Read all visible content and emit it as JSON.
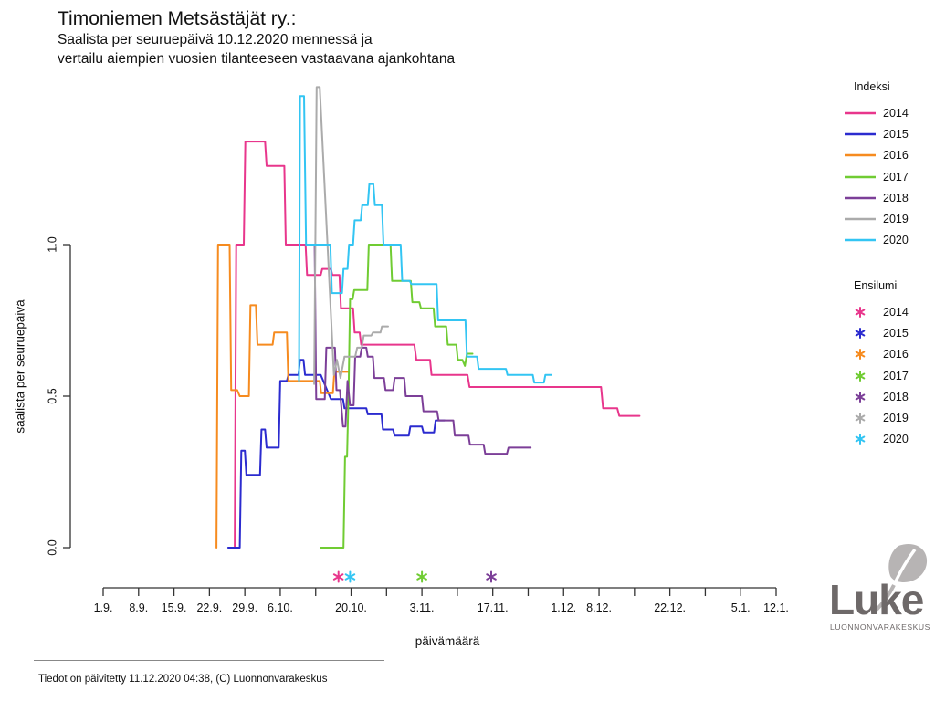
{
  "title": "Timoniemen Metsästäjät ry.:",
  "subtitle_line1": "Saalista per seuruepäivä 10.12.2020 mennessä ja",
  "subtitle_line2": "vertailu aiempien vuosien tilanteeseen vastaavana ajankohtana",
  "footer": "Tiedot on päivitetty 11.12.2020 04:38, (C) Luonnonvarakeskus",
  "logo": {
    "name": "Luke",
    "subtext": "LUONNONVARAKESKUS"
  },
  "legend": {
    "index_title": "Indeksi",
    "ensilumi_title": "Ensilumi",
    "years": [
      {
        "label": "2014",
        "color": "#E8368C"
      },
      {
        "label": "2015",
        "color": "#2B2BCF"
      },
      {
        "label": "2016",
        "color": "#F68B1F"
      },
      {
        "label": "2017",
        "color": "#70CC33"
      },
      {
        "label": "2018",
        "color": "#7C3F98"
      },
      {
        "label": "2019",
        "color": "#ABABAB"
      },
      {
        "label": "2020",
        "color": "#33C5F3"
      }
    ]
  },
  "chart_data": {
    "type": "line",
    "title": "Saalista per seuruepäivä 10.12.2020 mennessä ja vertailu aiempien vuosien tilanteeseen vastaavana ajankohtana",
    "xlabel": "päivämäärä",
    "ylabel": "saalista per seuruepäivä",
    "x_unit": "days since 1.9.",
    "xlim_days": [
      0,
      133
    ],
    "ylim": [
      0.0,
      1.0
    ],
    "grid": false,
    "legend_position": "right",
    "y_ticks": [
      {
        "v": 0.0,
        "label": "0.0"
      },
      {
        "v": 0.5,
        "label": "0.5"
      },
      {
        "v": 1.0,
        "label": "1.0"
      }
    ],
    "x_ticks": [
      {
        "day": 0,
        "label": "1.9."
      },
      {
        "day": 7,
        "label": "8.9."
      },
      {
        "day": 14,
        "label": "15.9."
      },
      {
        "day": 21,
        "label": "22.9."
      },
      {
        "day": 28,
        "label": "29.9."
      },
      {
        "day": 35,
        "label": "6.10."
      },
      {
        "day": 42,
        "label": ""
      },
      {
        "day": 49,
        "label": "20.10."
      },
      {
        "day": 56,
        "label": ""
      },
      {
        "day": 63,
        "label": "3.11."
      },
      {
        "day": 70,
        "label": ""
      },
      {
        "day": 77,
        "label": "17.11."
      },
      {
        "day": 84,
        "label": ""
      },
      {
        "day": 91,
        "label": "1.12."
      },
      {
        "day": 98,
        "label": "8.12."
      },
      {
        "day": 105,
        "label": ""
      },
      {
        "day": 112,
        "label": "22.12."
      },
      {
        "day": 119,
        "label": ""
      },
      {
        "day": 126,
        "label": "5.1."
      },
      {
        "day": 133,
        "label": "12.1."
      }
    ],
    "series": [
      {
        "name": "2014",
        "color": "#E8368C",
        "points": [
          [
            26,
            0
          ],
          [
            26.3,
            1.0
          ],
          [
            27.8,
            1.0
          ],
          [
            28.1,
            1.34
          ],
          [
            32,
            1.34
          ],
          [
            32.3,
            1.26
          ],
          [
            35.8,
            1.26
          ],
          [
            36.1,
            1.0
          ],
          [
            40,
            1.0
          ],
          [
            40.3,
            0.9
          ],
          [
            43,
            0.9
          ],
          [
            43.3,
            0.92
          ],
          [
            45,
            0.92
          ],
          [
            45.3,
            0.9
          ],
          [
            46.7,
            0.9
          ],
          [
            47,
            0.79
          ],
          [
            49.4,
            0.79
          ],
          [
            49.7,
            0.71
          ],
          [
            50.7,
            0.71
          ],
          [
            51,
            0.67
          ],
          [
            61.5,
            0.67
          ],
          [
            61.9,
            0.62
          ],
          [
            64.6,
            0.62
          ],
          [
            64.9,
            0.57
          ],
          [
            72,
            0.57
          ],
          [
            72.4,
            0.53
          ],
          [
            98.4,
            0.53
          ],
          [
            98.8,
            0.46
          ],
          [
            101.6,
            0.46
          ],
          [
            102,
            0.435
          ],
          [
            106,
            0.435
          ]
        ]
      },
      {
        "name": "2015",
        "color": "#2B2BCF",
        "points": [
          [
            24.7,
            0
          ],
          [
            27,
            0
          ],
          [
            27.3,
            0.32
          ],
          [
            28,
            0.32
          ],
          [
            28.3,
            0.24
          ],
          [
            31,
            0.24
          ],
          [
            31.3,
            0.39
          ],
          [
            32,
            0.39
          ],
          [
            32.3,
            0.33
          ],
          [
            34.7,
            0.33
          ],
          [
            35,
            0.55
          ],
          [
            36.3,
            0.55
          ],
          [
            36.6,
            0.57
          ],
          [
            38.6,
            0.57
          ],
          [
            38.9,
            0.62
          ],
          [
            39.6,
            0.62
          ],
          [
            39.9,
            0.57
          ],
          [
            43,
            0.57
          ],
          [
            45,
            0.49
          ],
          [
            47.4,
            0.49
          ],
          [
            47.7,
            0.46
          ],
          [
            52,
            0.46
          ],
          [
            52.3,
            0.44
          ],
          [
            55,
            0.44
          ],
          [
            55.3,
            0.39
          ],
          [
            57.3,
            0.39
          ],
          [
            57.6,
            0.37
          ],
          [
            60.4,
            0.37
          ],
          [
            60.7,
            0.4
          ],
          [
            63,
            0.4
          ],
          [
            63.3,
            0.38
          ],
          [
            65.4,
            0.38
          ],
          [
            65.7,
            0.42
          ],
          [
            67.5,
            0.42
          ]
        ]
      },
      {
        "name": "2016",
        "color": "#F68B1F",
        "points": [
          [
            22.4,
            0
          ],
          [
            22.7,
            1.0
          ],
          [
            25,
            1.0
          ],
          [
            25.3,
            0.52
          ],
          [
            26.5,
            0.52
          ],
          [
            27,
            0.5
          ],
          [
            28.8,
            0.5
          ],
          [
            29.1,
            0.8
          ],
          [
            30.2,
            0.8
          ],
          [
            30.5,
            0.67
          ],
          [
            33.5,
            0.67
          ],
          [
            33.8,
            0.71
          ],
          [
            36.3,
            0.71
          ],
          [
            36.6,
            0.55
          ],
          [
            42.8,
            0.55
          ],
          [
            43.1,
            0.51
          ],
          [
            45.4,
            0.51
          ],
          [
            45.7,
            0.58
          ],
          [
            48.5,
            0.58
          ]
        ]
      },
      {
        "name": "2017",
        "color": "#70CC33",
        "points": [
          [
            43,
            0
          ],
          [
            47.5,
            0
          ],
          [
            47.8,
            0.3
          ],
          [
            48.2,
            0.3
          ],
          [
            48.5,
            0.52
          ],
          [
            48.8,
            0.82
          ],
          [
            49.3,
            0.82
          ],
          [
            49.6,
            0.85
          ],
          [
            52.2,
            0.85
          ],
          [
            52.5,
            1.0
          ],
          [
            56.8,
            1.0
          ],
          [
            57.1,
            0.88
          ],
          [
            60.8,
            0.88
          ],
          [
            61.1,
            0.81
          ],
          [
            62.5,
            0.81
          ],
          [
            62.8,
            0.79
          ],
          [
            65.3,
            0.79
          ],
          [
            65.6,
            0.73
          ],
          [
            67.8,
            0.73
          ],
          [
            68.1,
            0.67
          ],
          [
            69.8,
            0.67
          ],
          [
            70.1,
            0.62
          ],
          [
            71,
            0.62
          ],
          [
            71.5,
            0.6
          ],
          [
            71.9,
            0.64
          ],
          [
            73,
            0.64
          ]
        ]
      },
      {
        "name": "2018",
        "color": "#7C3F98",
        "points": [
          [
            41.8,
            1.0
          ],
          [
            42.1,
            0.49
          ],
          [
            43.8,
            0.49
          ],
          [
            44.1,
            0.66
          ],
          [
            45.8,
            0.66
          ],
          [
            46.1,
            0.52
          ],
          [
            46.8,
            0.52
          ],
          [
            47.4,
            0.4
          ],
          [
            47.9,
            0.4
          ],
          [
            48.3,
            0.55
          ],
          [
            48.8,
            0.47
          ],
          [
            49.5,
            0.47
          ],
          [
            49.8,
            0.63
          ],
          [
            50.8,
            0.63
          ],
          [
            51.1,
            0.66
          ],
          [
            52,
            0.66
          ],
          [
            52.3,
            0.63
          ],
          [
            53.3,
            0.63
          ],
          [
            53.6,
            0.56
          ],
          [
            55.5,
            0.56
          ],
          [
            55.8,
            0.52
          ],
          [
            57.3,
            0.52
          ],
          [
            57.6,
            0.56
          ],
          [
            59.5,
            0.56
          ],
          [
            59.8,
            0.5
          ],
          [
            63,
            0.5
          ],
          [
            63.3,
            0.45
          ],
          [
            66,
            0.45
          ],
          [
            66.3,
            0.42
          ],
          [
            69.2,
            0.42
          ],
          [
            69.5,
            0.37
          ],
          [
            72.2,
            0.37
          ],
          [
            72.5,
            0.34
          ],
          [
            75.2,
            0.34
          ],
          [
            75.5,
            0.31
          ],
          [
            79.8,
            0.31
          ],
          [
            80.1,
            0.33
          ],
          [
            84.5,
            0.33
          ]
        ]
      },
      {
        "name": "2019",
        "color": "#ABABAB",
        "points": [
          [
            41.7,
            0.54
          ],
          [
            42.2,
            1.52
          ],
          [
            42.8,
            1.52
          ],
          [
            45.6,
            0.57
          ],
          [
            46.2,
            0.62
          ],
          [
            46.9,
            0.56
          ],
          [
            47.7,
            0.63
          ],
          [
            49.8,
            0.63
          ],
          [
            50.2,
            0.66
          ],
          [
            51.1,
            0.66
          ],
          [
            51.5,
            0.7
          ],
          [
            53,
            0.7
          ],
          [
            53.3,
            0.71
          ],
          [
            54.8,
            0.71
          ],
          [
            55.1,
            0.73
          ],
          [
            56.3,
            0.73
          ]
        ]
      },
      {
        "name": "2020",
        "color": "#33C5F3",
        "points": [
          [
            38.7,
            0.55
          ],
          [
            38.9,
            1.49
          ],
          [
            39.7,
            1.49
          ],
          [
            40.1,
            1.0
          ],
          [
            44.9,
            1.0
          ],
          [
            45.2,
            0.84
          ],
          [
            47.2,
            0.84
          ],
          [
            47.5,
            0.92
          ],
          [
            48.3,
            0.92
          ],
          [
            48.6,
            1.0
          ],
          [
            49.4,
            1.0
          ],
          [
            49.7,
            1.08
          ],
          [
            50.9,
            1.08
          ],
          [
            51.2,
            1.13
          ],
          [
            52.3,
            1.13
          ],
          [
            52.6,
            1.2
          ],
          [
            53.4,
            1.2
          ],
          [
            53.7,
            1.13
          ],
          [
            55.1,
            1.13
          ],
          [
            55.4,
            1.0
          ],
          [
            58.8,
            1.0
          ],
          [
            59.1,
            0.88
          ],
          [
            60.6,
            0.88
          ],
          [
            60.9,
            0.87
          ],
          [
            65.9,
            0.87
          ],
          [
            66.2,
            0.75
          ],
          [
            71.6,
            0.75
          ],
          [
            71.9,
            0.63
          ],
          [
            73.9,
            0.63
          ],
          [
            74.2,
            0.59
          ],
          [
            79.6,
            0.59
          ],
          [
            79.9,
            0.57
          ],
          [
            84.9,
            0.57
          ],
          [
            85.2,
            0.545
          ],
          [
            87.1,
            0.545
          ],
          [
            87.4,
            0.57
          ],
          [
            88.6,
            0.57
          ]
        ]
      }
    ],
    "ensilumi_marks": [
      {
        "year": "2014",
        "day": 46.5,
        "color": "#E8368C"
      },
      {
        "year": "2020",
        "day": 48.8,
        "color": "#33C5F3"
      },
      {
        "year": "2017",
        "day": 63.0,
        "color": "#70CC33"
      },
      {
        "year": "2018",
        "day": 76.7,
        "color": "#7C3F98"
      }
    ]
  }
}
